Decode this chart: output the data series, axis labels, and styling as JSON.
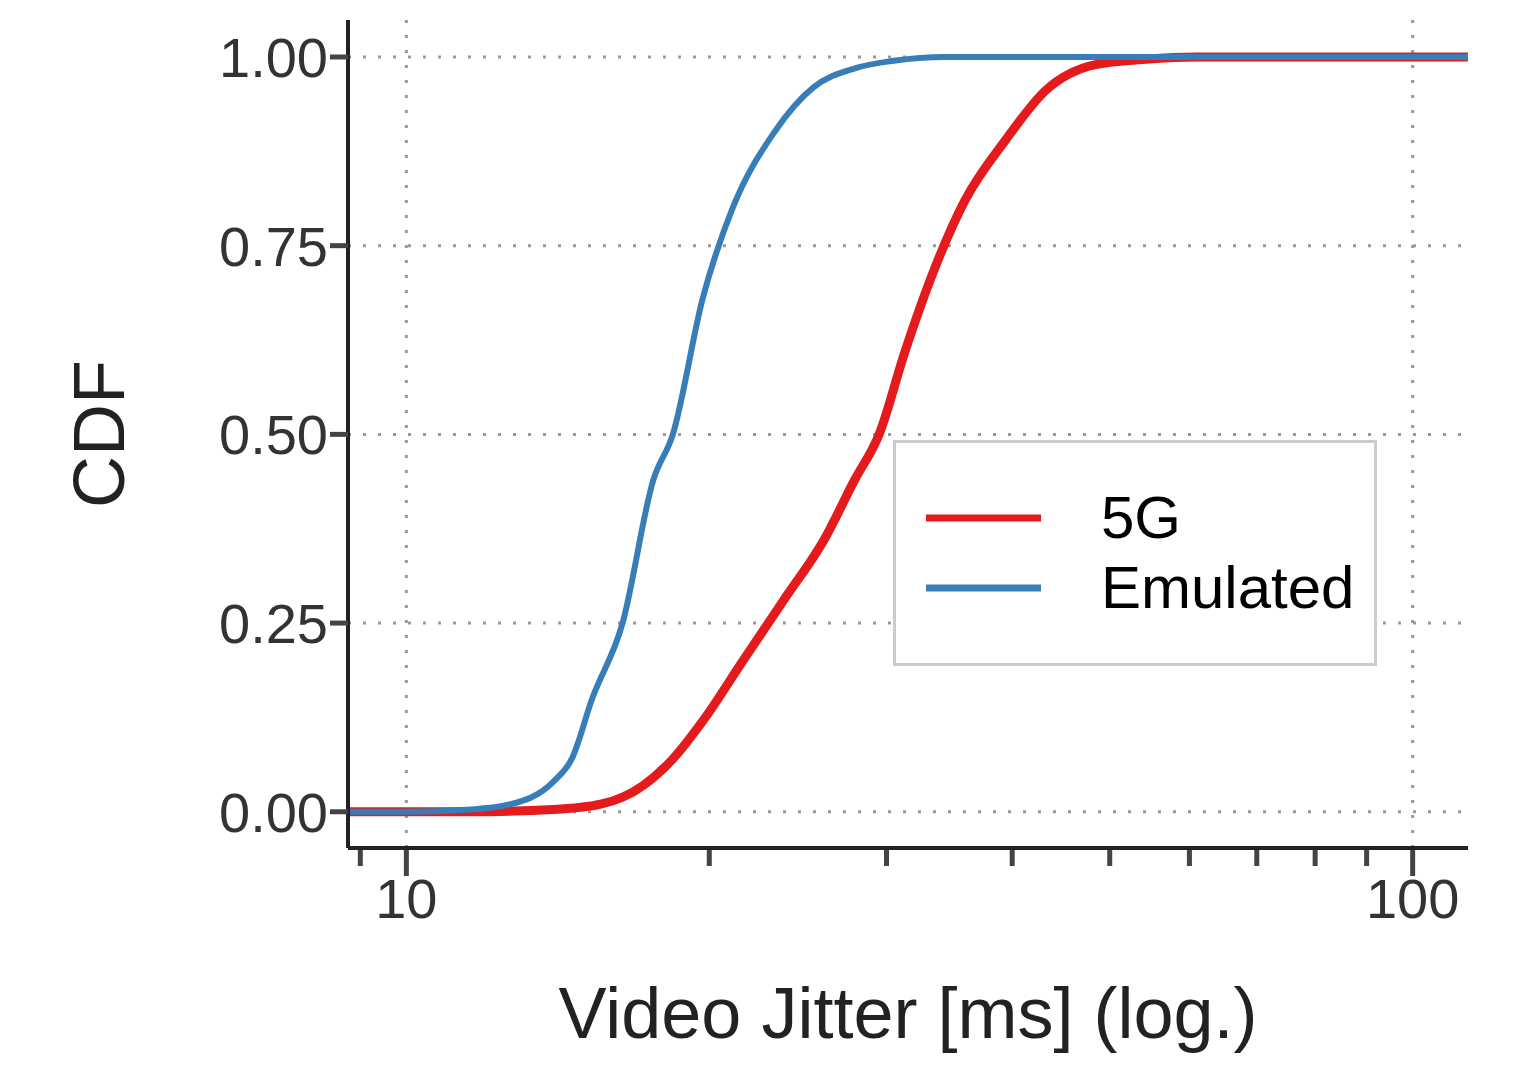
{
  "chart_data": {
    "type": "line",
    "xlabel": "Video Jitter [ms] (log.)",
    "ylabel": "CDF",
    "log": "x",
    "grid": true,
    "legend": "bottom right",
    "marker": "none",
    "line_style": "solid",
    "xlim": [
      8.75,
      113.5
    ],
    "xticks": [
      {
        "value": 9,
        "label": null
      },
      {
        "value": 10,
        "label": "10"
      },
      {
        "value": 20,
        "label": null
      },
      {
        "value": 30,
        "label": null
      },
      {
        "value": 40,
        "label": null
      },
      {
        "value": 50,
        "label": null
      },
      {
        "value": 60,
        "label": null
      },
      {
        "value": 70,
        "label": null
      },
      {
        "value": 80,
        "label": null
      },
      {
        "value": 90,
        "label": null
      },
      {
        "value": 100,
        "label": "100"
      }
    ],
    "ylim": [
      -0.048,
      1.049
    ],
    "yticks": [
      {
        "value": 0,
        "label": "0.00"
      },
      {
        "value": 0.25,
        "label": "0.25"
      },
      {
        "value": 0.5,
        "label": "0.50"
      },
      {
        "value": 0.75,
        "label": "0.75"
      },
      {
        "value": 1,
        "label": "1.00"
      }
    ],
    "series": [
      {
        "name": "5G",
        "color": "#e41a1c",
        "x": [
          8.75,
          11.6,
          14,
          15.6,
          17.2,
          18.4,
          19.7,
          21.6,
          23.7,
          26,
          27.9,
          29.5,
          31.3,
          33.5,
          35.9,
          39.4,
          43.2,
          48.4,
          54.3,
          61,
          113.5
        ],
        "values": [
          0,
          0,
          0.003,
          0.01,
          0.035,
          0.07,
          0.12,
          0.2,
          0.28,
          0.36,
          0.44,
          0.5,
          0.61,
          0.72,
          0.81,
          0.89,
          0.956,
          0.99,
          0.997,
          1,
          1
        ]
      },
      {
        "name": "Emulated",
        "color": "#377eb8",
        "x": [
          8.75,
          10,
          11.6,
          12.7,
          14,
          14.6,
          15.3,
          16.4,
          17.6,
          18.4,
          19.7,
          21.1,
          23.2,
          25.4,
          27.9,
          30.5,
          34.3,
          113.5
        ],
        "values": [
          0,
          0,
          0.003,
          0.01,
          0.04,
          0.07,
          0.15,
          0.25,
          0.44,
          0.5,
          0.68,
          0.8,
          0.9,
          0.96,
          0.985,
          0.995,
          1,
          1
        ]
      }
    ]
  }
}
